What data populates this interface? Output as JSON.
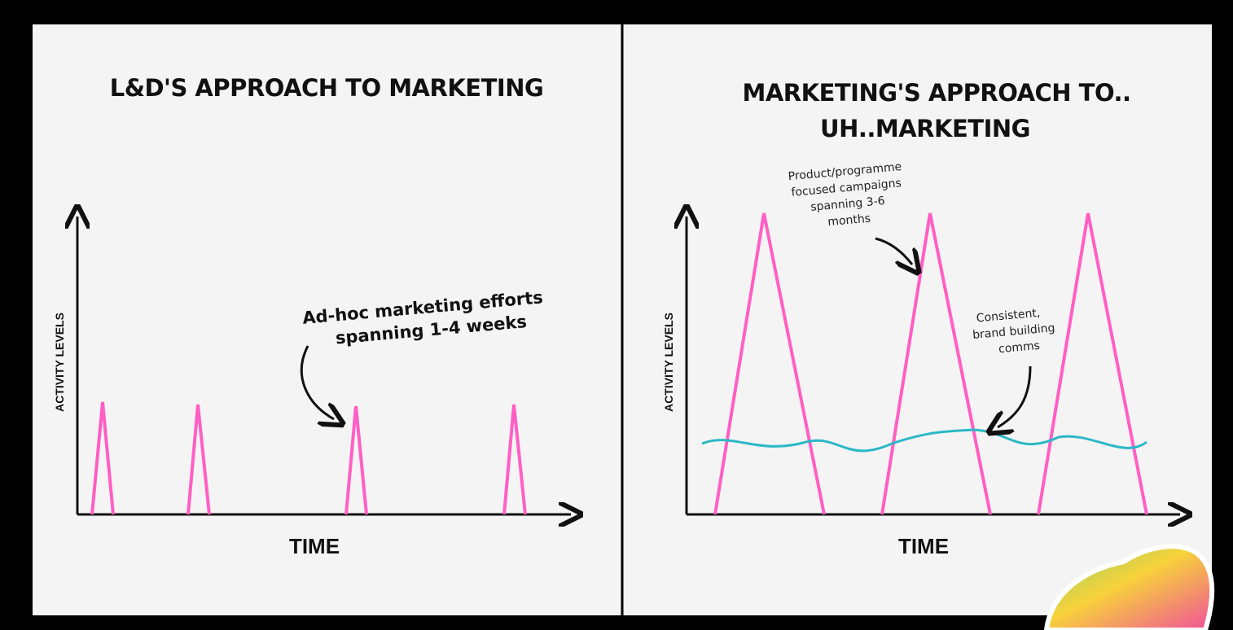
{
  "panels": [
    {
      "title": [
        "L&D'S APPROACH TO MARKETING"
      ],
      "y_label": "ACTIVITY LEVELS",
      "x_label": "TIME",
      "annotations": [
        {
          "lines": [
            "Ad-hoc marketing efforts",
            "spanning 1-4 weeks"
          ]
        }
      ]
    },
    {
      "title": [
        "MARKETING'S APPROACH TO..",
        "UH..MARKETING"
      ],
      "y_label": "ACTIVITY LEVELS",
      "x_label": "TIME",
      "annotations": [
        {
          "lines": [
            "Product/programme",
            "focused campaigns",
            "spanning 3-6",
            "months"
          ]
        },
        {
          "lines": [
            "Consistent,",
            "brand building",
            "comms"
          ]
        }
      ]
    }
  ]
}
